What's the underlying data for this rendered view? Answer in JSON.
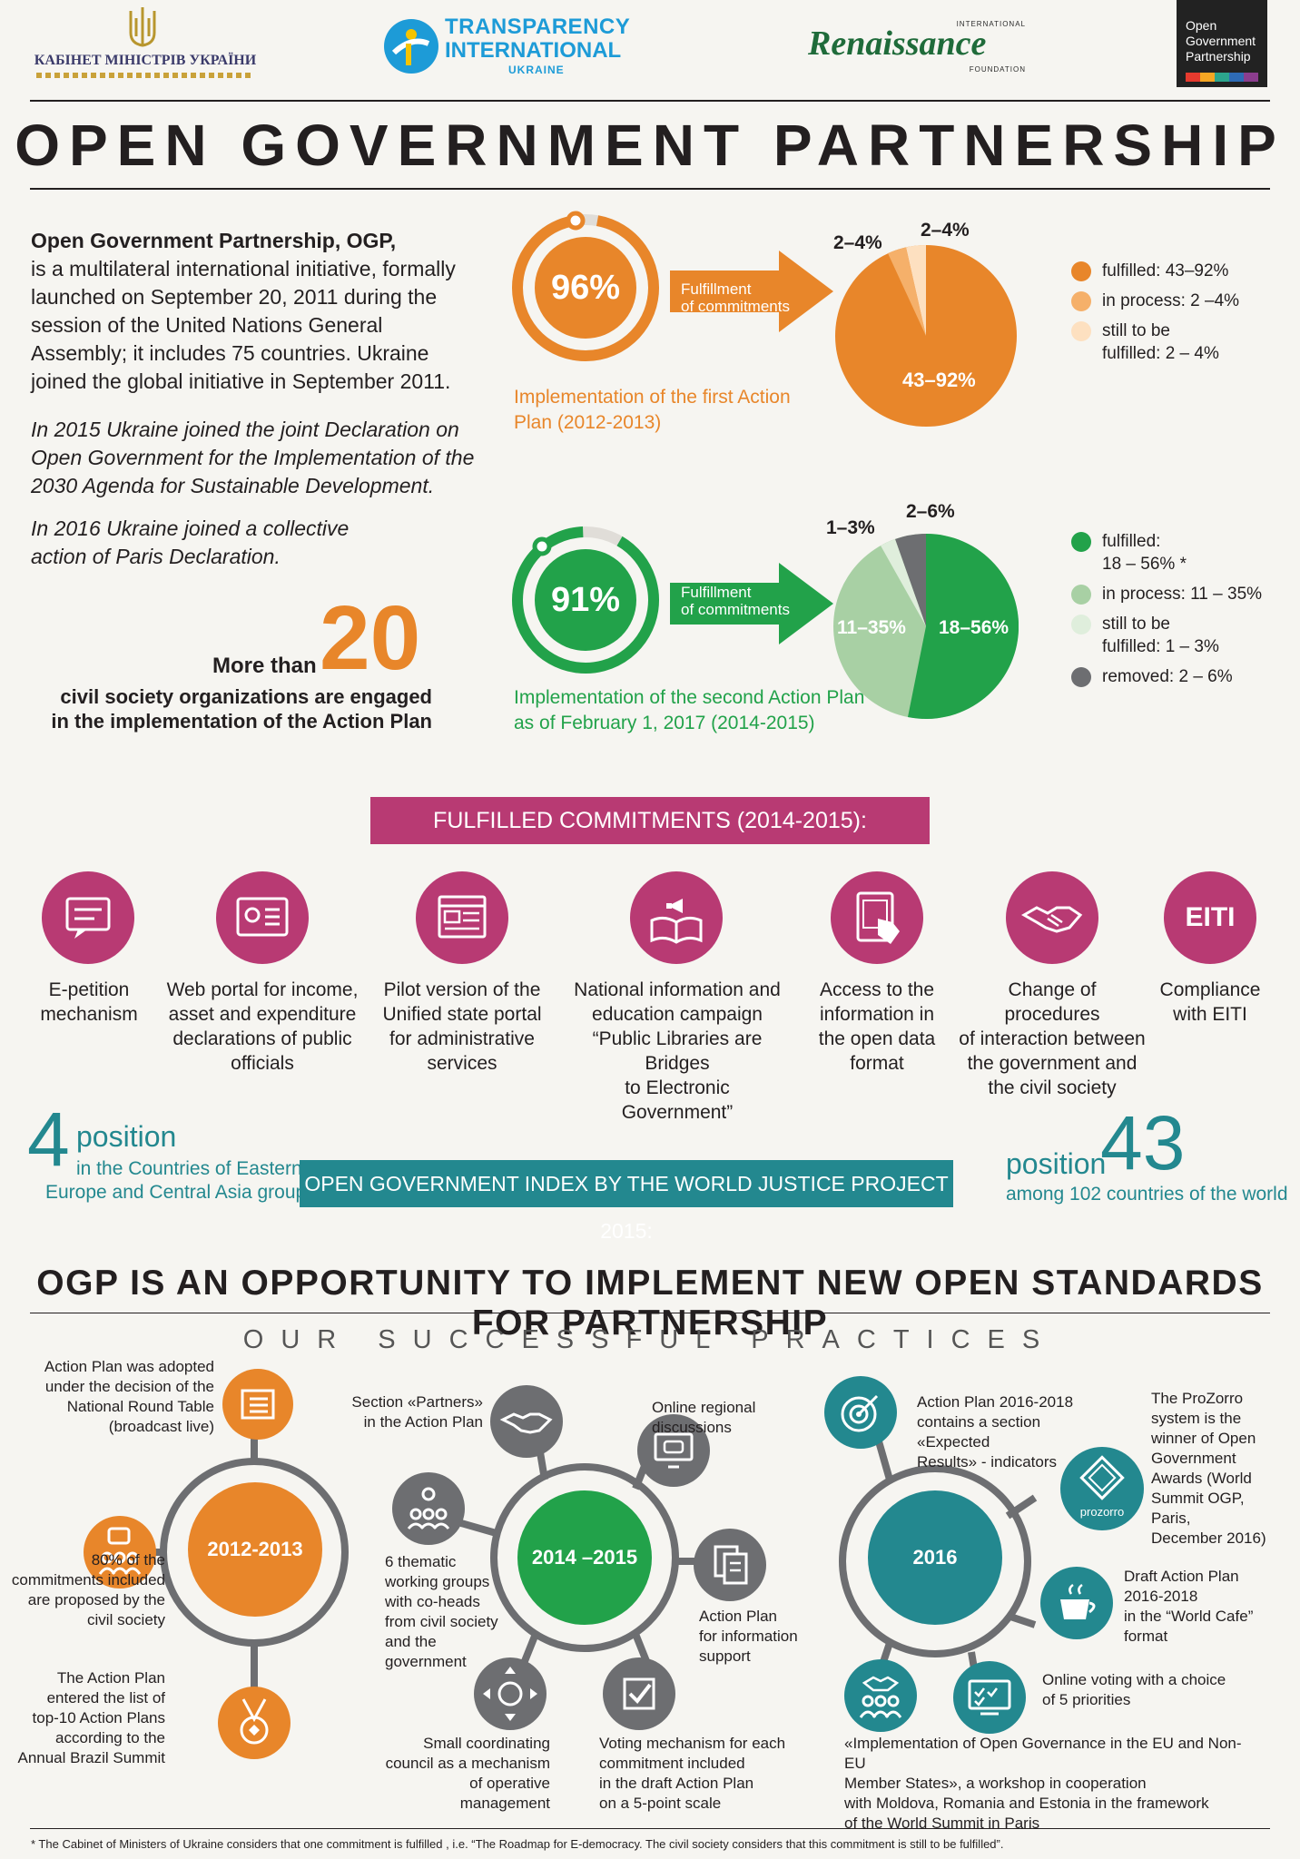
{
  "header": {
    "cabinet": "КАБІНЕТ МІНІСТРІВ УКРАЇНИ",
    "ti_line1": "TRANSPARENCY",
    "ti_line2": "INTERNATIONAL",
    "ti_line3": "UKRAINE",
    "ren_top": "INTERNATIONAL",
    "ren_name": "Renaissance",
    "ren_bottom": "FOUNDATION",
    "ogp_line1": "Open",
    "ogp_line2": "Government",
    "ogp_line3": "Partnership"
  },
  "title": "OPEN GOVERNMENT PARTNERSHIP",
  "intro": {
    "bold": "Open Government Partnership, OGP,",
    "text": "is a multilateral international initiative, formally launched on September 20, 2011 during the session of the United Nations General Assembly; it includes 75 countries. Ukraine joined the global initiative in September 2011.",
    "italic1": "In 2015 Ukraine joined the joint Declaration on Open Government for the Implementation of the 2030 Agenda for Sustainable Development.",
    "italic2": "In 2016 Ukraine joined a collective action of Paris Declaration."
  },
  "cso": {
    "more_than": "More than",
    "number": "20",
    "line1": "civil society organizations are engaged",
    "line2": "in the implementation of the Action Plan"
  },
  "plan1": {
    "ring": "96%",
    "arrow_l1": "Fulfillment",
    "arrow_l2": "of commitments",
    "caption_l1": "Implementation of the first Action",
    "caption_l2": "Plan (2012-2013)",
    "pie_main": "43–92%",
    "pie_a": "2–4%",
    "pie_b": "2–4%",
    "legend": [
      "fulfilled:  43–92%",
      "in process:  2 –4%",
      "still to be",
      "fulfilled:  2 – 4%"
    ]
  },
  "plan2": {
    "ring": "91%",
    "arrow_l1": "Fulfillment",
    "arrow_l2": "of commitments",
    "caption_l1": "Implementation of the second Action Plan",
    "caption_l2": "as of February 1, 2017 (2014-2015)",
    "pie_main": "18–56%",
    "pie_light": "11–35%",
    "pie_a": "1–3%",
    "pie_b": "2–6%",
    "legend": [
      "fulfilled:",
      "18 – 56% *",
      "in process: 11 – 35%",
      "still to be",
      "fulfilled:  1 – 3%",
      "removed:  2 – 6%"
    ]
  },
  "colors": {
    "orange": "#e8862a",
    "green": "#22a24a",
    "magenta": "#b83a73",
    "teal": "#23888f",
    "grey": "#6d6e71"
  },
  "fulfilled_banner": "FULFILLED COMMITMENTS (2014-2015):",
  "commitments": [
    {
      "icon": "chat-screen-icon",
      "l1": "E-petition",
      "l2": "mechanism",
      "l3": "",
      "l4": ""
    },
    {
      "icon": "id-card-icon",
      "l1": "Web portal for income,",
      "l2": "asset and expenditure",
      "l3": "declarations of public",
      "l4": "officials"
    },
    {
      "icon": "browser-window-icon",
      "l1": "Pilot version of the",
      "l2": "Unified state portal",
      "l3": "for administrative",
      "l4": "services"
    },
    {
      "icon": "book-megaphone-icon",
      "l1": "National information and",
      "l2": "education campaign",
      "l3": "“Public Libraries are Bridges",
      "l4": "to Electronic Government”"
    },
    {
      "icon": "tablet-touch-icon",
      "l1": "Access to the",
      "l2": "information in",
      "l3": "the open data",
      "l4": "format"
    },
    {
      "icon": "handshake-icon",
      "l1": "Change of procedures",
      "l2": "of interaction between",
      "l3": "the government and",
      "l4": "the civil society"
    },
    {
      "icon": "eiti-icon",
      "l1": "Compliance",
      "l2": "with EITI",
      "l3": "",
      "l4": ""
    }
  ],
  "eiti_text": "EITI",
  "index": {
    "left_num": "4",
    "left_word": "position",
    "left_l1": "in the Countries of Eastern",
    "left_l2": "Europe and Central Asia group",
    "banner": "OPEN GOVERNMENT INDEX BY THE WORLD JUSTICE PROJECT 2015:",
    "right_word": "position",
    "right_num": "43",
    "right_l1": "among 102 countries of the world"
  },
  "section_title": "OGP IS AN OPPORTUNITY TO IMPLEMENT NEW OPEN STANDARDS FOR PARTNERSHIP",
  "section_sub": "OUR SUCCESSFUL PRACTICES",
  "p2012": {
    "hub": "2012-2013",
    "t1": [
      "Action Plan was adopted",
      "under the decision of the",
      "National Round Table",
      "(broadcast live)"
    ],
    "t2": [
      "80% of the",
      "commitments included",
      "are proposed by the",
      "civil society"
    ],
    "t3": [
      "The Action Plan",
      "entered the list of",
      "top-10 Action Plans",
      "according to the",
      "Annual Brazil Summit"
    ]
  },
  "p2014": {
    "hub": "2014 –2015",
    "t1": [
      "Section «Partners»",
      "in the Action Plan"
    ],
    "t2": [
      "Online regional",
      "discussions"
    ],
    "t3": [
      "6 thematic",
      "working groups",
      "with co-heads",
      "from civil society",
      "and the",
      "government"
    ],
    "t4": [
      "Action Plan",
      "for information",
      "support"
    ],
    "t5": [
      "Small coordinating",
      "council as a mechanism",
      "of operative",
      "management"
    ],
    "t6": [
      "Voting mechanism for each",
      "commitment included",
      "in the draft Action Plan",
      "on a 5-point scale"
    ]
  },
  "p2016": {
    "hub": "2016",
    "prozorro": "prozorro",
    "t1": [
      "Action Plan 2016-2018",
      "contains a section «Expected",
      "Results» - indicators"
    ],
    "t2": [
      "The ProZorro",
      "system is the",
      "winner of Open",
      "Government",
      "Awards (World",
      "Summit OGP, Paris,",
      "December 2016)"
    ],
    "t3": [
      "Draft Action Plan",
      "2016-2018",
      "in the “World Cafe”",
      "format"
    ],
    "t4": [
      "Online voting with a choice",
      "of 5 priorities"
    ],
    "t5": [
      "«Implementation of Open Governance in the EU and Non-EU",
      "Member States», a workshop in cooperation",
      "with Moldova, Romania and Estonia in the framework",
      "of the World Summit in Paris"
    ]
  },
  "footnote": "* The Cabinet of Ministers of Ukraine considers that one commitment is fulfilled , i.e. “The Roadmap for E-democracy. The civil society considers that this commitment is still to be fulfilled”."
}
